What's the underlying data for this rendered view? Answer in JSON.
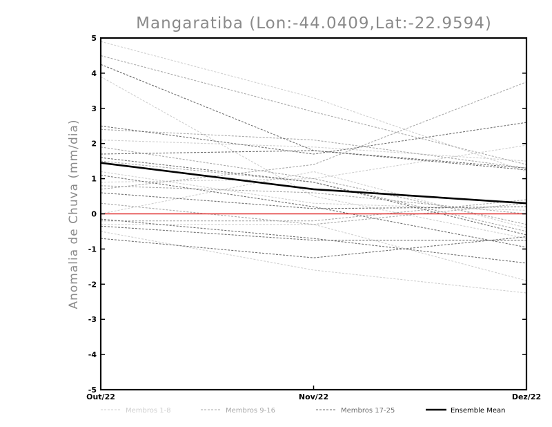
{
  "chart_data": {
    "type": "line",
    "title": "Mangaratiba (Lon:-44.0409,Lat:-22.9594)",
    "xlabel": "",
    "ylabel": "Anomalia de Chuva (mm/dia)",
    "categories": [
      "Out/22",
      "Nov/22",
      "Dez/22"
    ],
    "ylim": [
      -5,
      5
    ],
    "yticks": [
      -5,
      -4,
      -3,
      -2,
      -1,
      0,
      1,
      2,
      3,
      4,
      5
    ],
    "grid": false,
    "legend_position": "bottom",
    "zero_line_color": "#e03030",
    "group_colors": {
      "Membros 1-8": "#cfcfcf",
      "Membros 9-16": "#a8a8a8",
      "Membros 17-25": "#6e6e6e",
      "Ensemble Mean": "#000000"
    },
    "legend": [
      {
        "label": "Membros 1-8",
        "color": "#cfcfcf",
        "style": "dashed"
      },
      {
        "label": "Membros 9-16",
        "color": "#a8a8a8",
        "style": "dashed"
      },
      {
        "label": "Membros 17-25",
        "color": "#6e6e6e",
        "style": "dashed"
      },
      {
        "label": "Ensemble Mean",
        "color": "#000000",
        "style": "solid"
      }
    ],
    "series": [
      {
        "group": "Membros 1-8",
        "values": [
          4.9,
          3.3,
          1.2
        ]
      },
      {
        "group": "Membros 1-8",
        "values": [
          3.9,
          0.5,
          -0.7
        ]
      },
      {
        "group": "Membros 1-8",
        "values": [
          2.1,
          1.9,
          1.5
        ]
      },
      {
        "group": "Membros 1-8",
        "values": [
          0.9,
          1.0,
          1.95
        ]
      },
      {
        "group": "Membros 1-8",
        "values": [
          0.0,
          1.2,
          -0.4
        ]
      },
      {
        "group": "Membros 1-8",
        "values": [
          -0.3,
          -0.3,
          -1.9
        ]
      },
      {
        "group": "Membros 1-8",
        "values": [
          -0.5,
          -1.6,
          -2.25
        ]
      },
      {
        "group": "Membros 1-8",
        "values": [
          1.2,
          0.3,
          0.1
        ]
      },
      {
        "group": "Membros 9-16",
        "values": [
          4.5,
          2.9,
          1.4
        ]
      },
      {
        "group": "Membros 9-16",
        "values": [
          2.4,
          2.1,
          1.3
        ]
      },
      {
        "group": "Membros 9-16",
        "values": [
          1.5,
          0.9,
          -0.5
        ]
      },
      {
        "group": "Membros 9-16",
        "values": [
          0.7,
          1.4,
          3.75
        ]
      },
      {
        "group": "Membros 9-16",
        "values": [
          0.3,
          -0.3,
          0.3
        ]
      },
      {
        "group": "Membros 9-16",
        "values": [
          -0.2,
          -0.2,
          0.4
        ]
      },
      {
        "group": "Membros 9-16",
        "values": [
          1.9,
          1.0,
          -0.3
        ]
      },
      {
        "group": "Membros 9-16",
        "values": [
          0.8,
          0.6,
          0.0
        ]
      },
      {
        "group": "Membros 17-25",
        "values": [
          4.25,
          1.8,
          1.3
        ]
      },
      {
        "group": "Membros 17-25",
        "values": [
          2.5,
          1.7,
          2.6
        ]
      },
      {
        "group": "Membros 17-25",
        "values": [
          1.7,
          1.8,
          1.25
        ]
      },
      {
        "group": "Membros 17-25",
        "values": [
          1.6,
          0.9,
          -0.6
        ]
      },
      {
        "group": "Membros 17-25",
        "values": [
          1.1,
          0.2,
          -0.95
        ]
      },
      {
        "group": "Membros 17-25",
        "values": [
          0.6,
          0.15,
          0.2
        ]
      },
      {
        "group": "Membros 17-25",
        "values": [
          -0.15,
          -0.7,
          -1.4
        ]
      },
      {
        "group": "Membros 17-25",
        "values": [
          -0.35,
          -0.75,
          -0.75
        ]
      },
      {
        "group": "Membros 17-25",
        "values": [
          -0.7,
          -1.25,
          -0.65
        ]
      },
      {
        "group": "Ensemble Mean",
        "values": [
          1.45,
          0.7,
          0.3
        ]
      }
    ]
  }
}
